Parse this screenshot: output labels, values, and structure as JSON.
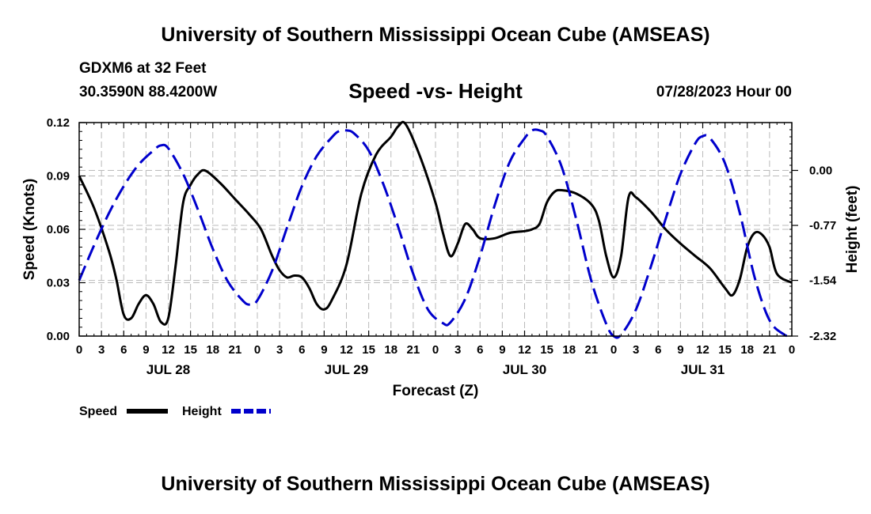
{
  "header": {
    "title": "University of Southern Mississippi Ocean Cube (AMSEAS)",
    "station": "GDXM6 at 32 Feet",
    "coords": "30.3590N  88.4200W",
    "subtitle": "Speed -vs- Height",
    "datetime": "07/28/2023 Hour 00"
  },
  "footer": {
    "title": "University of Southern Mississippi Ocean Cube (AMSEAS)"
  },
  "chart_data": {
    "type": "line",
    "title": "Speed -vs- Height",
    "xlabel": "Forecast (Z)",
    "ylabel": "Speed (Knots)",
    "y2label": "Height (feet)",
    "xlim": [
      0,
      96
    ],
    "ylim": [
      0,
      0.12
    ],
    "y2lim": [
      -2.32,
      0.67
    ],
    "grid": true,
    "x_tick_labels": [
      "0",
      "3",
      "6",
      "9",
      "12",
      "15",
      "18",
      "21",
      "0",
      "3",
      "6",
      "9",
      "12",
      "15",
      "18",
      "21",
      "0",
      "3",
      "6",
      "9",
      "12",
      "15",
      "18",
      "21",
      "0",
      "3",
      "6",
      "9",
      "12",
      "15",
      "18",
      "21",
      "0"
    ],
    "y_ticks": [
      "0.00",
      "0.03",
      "0.06",
      "0.09",
      "0.12"
    ],
    "y2_ticks": [
      "0.00",
      "-0.77",
      "-1.54",
      "-2.32"
    ],
    "y2_tick_values": [
      0,
      -0.77,
      -1.54,
      -2.32
    ],
    "day_labels": [
      {
        "label": "JUL 28",
        "hour": 12
      },
      {
        "label": "JUL 29",
        "hour": 36
      },
      {
        "label": "JUL 30",
        "hour": 60
      },
      {
        "label": "JUL 31",
        "hour": 84
      }
    ],
    "legend": [
      {
        "name": "Speed",
        "color": "#000000",
        "style": "solid"
      },
      {
        "name": "Height",
        "color": "#0000cc",
        "style": "dashed"
      }
    ],
    "legend_position": "bottom-left",
    "series": [
      {
        "name": "Speed",
        "axis": "left",
        "color": "#000000",
        "dash": "solid",
        "points": [
          [
            0,
            0.09
          ],
          [
            2,
            0.072
          ],
          [
            4,
            0.048
          ],
          [
            5,
            0.032
          ],
          [
            6,
            0.012
          ],
          [
            7,
            0.01
          ],
          [
            8,
            0.018
          ],
          [
            9,
            0.023
          ],
          [
            10,
            0.018
          ],
          [
            11,
            0.008
          ],
          [
            12,
            0.01
          ],
          [
            13,
            0.04
          ],
          [
            14,
            0.075
          ],
          [
            15,
            0.085
          ],
          [
            16,
            0.091
          ],
          [
            17,
            0.093
          ],
          [
            19,
            0.086
          ],
          [
            21,
            0.077
          ],
          [
            23,
            0.068
          ],
          [
            24.5,
            0.06
          ],
          [
            26,
            0.045
          ],
          [
            27,
            0.037
          ],
          [
            28,
            0.033
          ],
          [
            29,
            0.034
          ],
          [
            30,
            0.033
          ],
          [
            31,
            0.027
          ],
          [
            32,
            0.018
          ],
          [
            33,
            0.015
          ],
          [
            34,
            0.02
          ],
          [
            36,
            0.04
          ],
          [
            38,
            0.08
          ],
          [
            40,
            0.102
          ],
          [
            42,
            0.112
          ],
          [
            43,
            0.118
          ],
          [
            44,
            0.119
          ],
          [
            46,
            0.1
          ],
          [
            48,
            0.075
          ],
          [
            49,
            0.058
          ],
          [
            50,
            0.045
          ],
          [
            51,
            0.052
          ],
          [
            52,
            0.063
          ],
          [
            53,
            0.06
          ],
          [
            54,
            0.055
          ],
          [
            56,
            0.055
          ],
          [
            58,
            0.058
          ],
          [
            60,
            0.059
          ],
          [
            61,
            0.06
          ],
          [
            62,
            0.063
          ],
          [
            63,
            0.075
          ],
          [
            64,
            0.081
          ],
          [
            65,
            0.082
          ],
          [
            67,
            0.08
          ],
          [
            69,
            0.074
          ],
          [
            70,
            0.065
          ],
          [
            71,
            0.045
          ],
          [
            72,
            0.033
          ],
          [
            73,
            0.045
          ],
          [
            74,
            0.078
          ],
          [
            75,
            0.078
          ],
          [
            77,
            0.07
          ],
          [
            79,
            0.06
          ],
          [
            81,
            0.052
          ],
          [
            83,
            0.045
          ],
          [
            85,
            0.038
          ],
          [
            87,
            0.027
          ],
          [
            88,
            0.023
          ],
          [
            89,
            0.032
          ],
          [
            90,
            0.05
          ],
          [
            91,
            0.058
          ],
          [
            92,
            0.057
          ],
          [
            93,
            0.05
          ],
          [
            94,
            0.035
          ],
          [
            96,
            0.03
          ]
        ]
      },
      {
        "name": "Height",
        "axis": "right",
        "color": "#0000cc",
        "dash": "dashed",
        "points": [
          [
            0,
            -1.54
          ],
          [
            2,
            -1.05
          ],
          [
            4,
            -0.6
          ],
          [
            6,
            -0.22
          ],
          [
            8,
            0.08
          ],
          [
            10,
            0.28
          ],
          [
            11,
            0.35
          ],
          [
            12,
            0.31
          ],
          [
            14,
            -0.05
          ],
          [
            16,
            -0.55
          ],
          [
            18,
            -1.1
          ],
          [
            20,
            -1.55
          ],
          [
            22,
            -1.82
          ],
          [
            23,
            -1.88
          ],
          [
            24,
            -1.82
          ],
          [
            26,
            -1.4
          ],
          [
            28,
            -0.8
          ],
          [
            30,
            -0.22
          ],
          [
            32,
            0.2
          ],
          [
            34,
            0.46
          ],
          [
            35,
            0.55
          ],
          [
            36,
            0.56
          ],
          [
            37,
            0.52
          ],
          [
            39,
            0.28
          ],
          [
            41,
            -0.2
          ],
          [
            43,
            -0.8
          ],
          [
            45,
            -1.45
          ],
          [
            47,
            -1.95
          ],
          [
            49,
            -2.14
          ],
          [
            50,
            -2.13
          ],
          [
            52,
            -1.8
          ],
          [
            54,
            -1.2
          ],
          [
            56,
            -0.48
          ],
          [
            58,
            0.12
          ],
          [
            60,
            0.45
          ],
          [
            61,
            0.56
          ],
          [
            62,
            0.56
          ],
          [
            63,
            0.48
          ],
          [
            65,
            0.05
          ],
          [
            67,
            -0.7
          ],
          [
            69,
            -1.55
          ],
          [
            71,
            -2.15
          ],
          [
            72,
            -2.32
          ],
          [
            73,
            -2.3
          ],
          [
            75,
            -1.95
          ],
          [
            77,
            -1.35
          ],
          [
            79,
            -0.68
          ],
          [
            81,
            -0.05
          ],
          [
            83,
            0.38
          ],
          [
            84,
            0.48
          ],
          [
            85,
            0.45
          ],
          [
            87,
            0.1
          ],
          [
            89,
            -0.6
          ],
          [
            91,
            -1.5
          ],
          [
            93,
            -2.1
          ],
          [
            95,
            -2.3
          ],
          [
            96,
            -2.32
          ]
        ]
      }
    ]
  }
}
